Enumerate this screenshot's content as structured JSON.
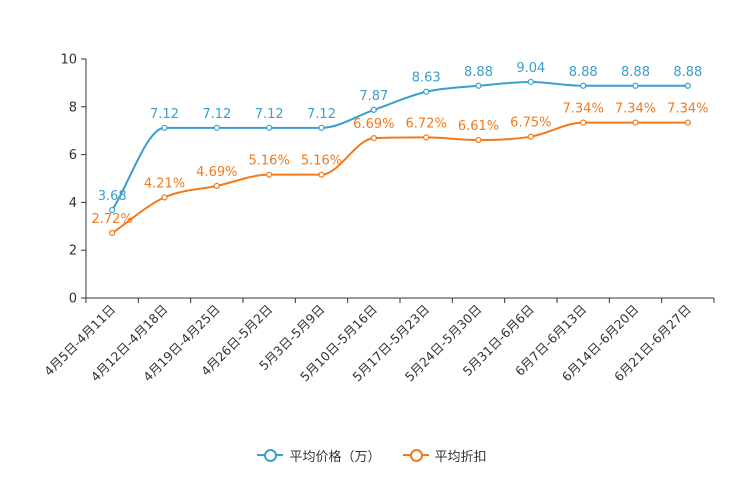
{
  "chart_data": {
    "type": "line",
    "categories": [
      "4月5日-4月11日",
      "4月12日-4月18日",
      "4月19日-4月25日",
      "4月26日-5月2日",
      "5月3日-5月9日",
      "5月10日-5月16日",
      "5月17日-5月23日",
      "5月24日-5月30日",
      "5月31日-6月6日",
      "6月7日-6月13日",
      "6月14日-6月20日",
      "6月21日-6月27日"
    ],
    "ylim": [
      0,
      10
    ],
    "yticks": [
      0,
      2,
      4,
      6,
      8,
      10
    ],
    "smooth": true,
    "series": [
      {
        "name": "平均价格（万）",
        "color": "#3a9fcb",
        "values": [
          3.68,
          7.12,
          7.12,
          7.12,
          7.12,
          7.87,
          8.63,
          8.88,
          9.04,
          8.88,
          8.88,
          8.88
        ],
        "labels": [
          "3.68",
          "7.12",
          "7.12",
          "7.12",
          "7.12",
          "7.87",
          "8.63",
          "8.88",
          "9.04",
          "8.88",
          "8.88",
          "8.88"
        ]
      },
      {
        "name": "平均折扣",
        "color": "#f07a1c",
        "values": [
          2.72,
          4.21,
          4.69,
          5.16,
          5.16,
          6.69,
          6.72,
          6.61,
          6.75,
          7.34,
          7.34,
          7.34
        ],
        "labels": [
          "2.72%",
          "4.21%",
          "4.69%",
          "5.16%",
          "5.16%",
          "6.69%",
          "6.72%",
          "6.61%",
          "6.75%",
          "7.34%",
          "7.34%",
          "7.34%"
        ]
      }
    ],
    "legend_position": "bottom"
  }
}
